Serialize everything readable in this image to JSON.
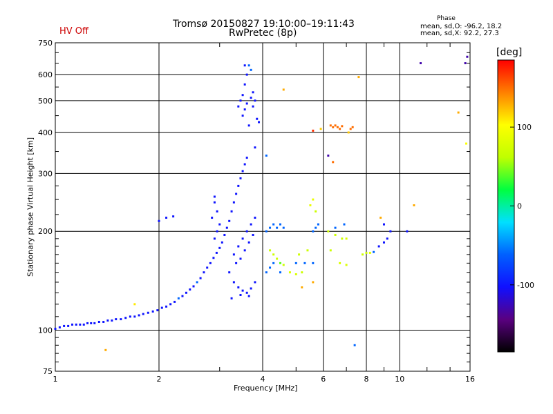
{
  "header": {
    "title_line1": "Tromsø 20150827 19:10:00–19:11:43",
    "title_line2": "RwPretec (8p)",
    "status": "HV Off"
  },
  "phase_box": {
    "label": "Phase",
    "line1": "mean, sd,O: -96.2, 18.2",
    "line2": "mean, sd,X:  92.2, 27.3"
  },
  "colorbar": {
    "unit": "[deg]",
    "ticks": [
      {
        "value": 100,
        "label": "100"
      },
      {
        "value": 0,
        "label": "0"
      },
      {
        "value": -100,
        "label": "-100"
      }
    ],
    "range": [
      -185,
      185
    ],
    "colors": [
      "#000000",
      "#5a0080",
      "#1010ff",
      "#0060ff",
      "#00e0ff",
      "#00ff40",
      "#c0ff00",
      "#ffff00",
      "#ff8000",
      "#ff0000"
    ]
  },
  "chart_data": {
    "type": "scatter",
    "xlabel": "Frequency [MHz]",
    "ylabel": "Stationary phase Virtual Height [km]",
    "xscale": "log",
    "yscale": "log",
    "xlim": [
      1,
      16
    ],
    "ylim": [
      75,
      750
    ],
    "grid": true,
    "xticks": [
      {
        "value": 1,
        "label": "1"
      },
      {
        "value": 2,
        "label": "2"
      },
      {
        "value": 4,
        "label": "4"
      },
      {
        "value": 6,
        "label": "6"
      },
      {
        "value": 8,
        "label": "8"
      },
      {
        "value": 10,
        "label": "10"
      },
      {
        "value": 16,
        "label": "16"
      }
    ],
    "yticks": [
      {
        "value": 75,
        "label": "75"
      },
      {
        "value": 100,
        "label": "100"
      },
      {
        "value": 200,
        "label": "200"
      },
      {
        "value": 300,
        "label": "300"
      },
      {
        "value": 400,
        "label": "400"
      },
      {
        "value": 500,
        "label": "500"
      },
      {
        "value": 600,
        "label": "600"
      },
      {
        "value": 750,
        "label": "750"
      }
    ],
    "points": [
      [
        1.0,
        101,
        -100
      ],
      [
        1.03,
        102,
        -100
      ],
      [
        1.06,
        103,
        -100
      ],
      [
        1.09,
        103,
        -100
      ],
      [
        1.12,
        104,
        -100
      ],
      [
        1.15,
        104,
        -100
      ],
      [
        1.18,
        104,
        -100
      ],
      [
        1.21,
        104,
        -100
      ],
      [
        1.24,
        105,
        -100
      ],
      [
        1.27,
        105,
        -100
      ],
      [
        1.3,
        105,
        -100
      ],
      [
        1.34,
        106,
        -100
      ],
      [
        1.38,
        106,
        -100
      ],
      [
        1.42,
        107,
        -100
      ],
      [
        1.46,
        107,
        -100
      ],
      [
        1.5,
        108,
        -100
      ],
      [
        1.55,
        108,
        -100
      ],
      [
        1.6,
        109,
        -100
      ],
      [
        1.65,
        110,
        -100
      ],
      [
        1.7,
        110,
        -100
      ],
      [
        1.75,
        111,
        -100
      ],
      [
        1.8,
        112,
        -100
      ],
      [
        1.86,
        113,
        -100
      ],
      [
        1.92,
        114,
        -100
      ],
      [
        1.98,
        115,
        -100
      ],
      [
        2.04,
        117,
        -100
      ],
      [
        2.1,
        118,
        -100
      ],
      [
        2.16,
        120,
        -100
      ],
      [
        2.22,
        122,
        -100
      ],
      [
        2.28,
        125,
        -60
      ],
      [
        2.34,
        127,
        -100
      ],
      [
        2.4,
        130,
        -100
      ],
      [
        2.46,
        133,
        -100
      ],
      [
        2.52,
        136,
        -100
      ],
      [
        2.58,
        140,
        -60
      ],
      [
        2.64,
        144,
        -100
      ],
      [
        2.7,
        150,
        -100
      ],
      [
        2.76,
        155,
        -100
      ],
      [
        2.82,
        160,
        -100
      ],
      [
        2.88,
        166,
        -100
      ],
      [
        2.94,
        172,
        -100
      ],
      [
        3.0,
        178,
        -100
      ],
      [
        2.9,
        190,
        -100
      ],
      [
        2.95,
        200,
        -100
      ],
      [
        3.0,
        210,
        -100
      ],
      [
        2.85,
        220,
        -100
      ],
      [
        2.95,
        230,
        -100
      ],
      [
        2.9,
        245,
        -100
      ],
      [
        2.9,
        255,
        -100
      ],
      [
        3.05,
        185,
        -100
      ],
      [
        3.1,
        195,
        -100
      ],
      [
        3.15,
        205,
        -100
      ],
      [
        3.2,
        215,
        -100
      ],
      [
        3.25,
        230,
        -100
      ],
      [
        3.3,
        245,
        -100
      ],
      [
        3.35,
        260,
        -100
      ],
      [
        3.4,
        275,
        -100
      ],
      [
        3.45,
        290,
        -100
      ],
      [
        3.5,
        305,
        -100
      ],
      [
        3.55,
        320,
        -100
      ],
      [
        3.6,
        335,
        -100
      ],
      [
        3.2,
        150,
        -100
      ],
      [
        3.3,
        140,
        -100
      ],
      [
        3.4,
        135,
        -100
      ],
      [
        3.5,
        132,
        -100
      ],
      [
        3.6,
        130,
        -100
      ],
      [
        3.7,
        134,
        -100
      ],
      [
        3.8,
        140,
        -100
      ],
      [
        3.3,
        170,
        -100
      ],
      [
        3.4,
        180,
        -100
      ],
      [
        3.5,
        190,
        -100
      ],
      [
        3.6,
        200,
        -100
      ],
      [
        3.7,
        210,
        -100
      ],
      [
        3.8,
        220,
        -100
      ],
      [
        3.35,
        160,
        -100
      ],
      [
        3.45,
        165,
        -100
      ],
      [
        3.55,
        175,
        -100
      ],
      [
        3.65,
        185,
        -100
      ],
      [
        3.75,
        195,
        -100
      ],
      [
        3.25,
        125,
        -100
      ],
      [
        3.45,
        128,
        -100
      ],
      [
        3.65,
        127,
        -100
      ],
      [
        3.5,
        450,
        -100
      ],
      [
        3.55,
        470,
        -100
      ],
      [
        3.6,
        490,
        -100
      ],
      [
        3.5,
        520,
        -100
      ],
      [
        3.55,
        560,
        -100
      ],
      [
        3.6,
        600,
        -100
      ],
      [
        3.55,
        640,
        -100
      ],
      [
        3.65,
        640,
        -60
      ],
      [
        3.7,
        620,
        -60
      ],
      [
        3.4,
        480,
        -100
      ],
      [
        3.45,
        500,
        -100
      ],
      [
        3.75,
        480,
        -100
      ],
      [
        3.8,
        500,
        -100
      ],
      [
        3.85,
        440,
        -100
      ],
      [
        3.9,
        430,
        -100
      ],
      [
        3.65,
        420,
        -100
      ],
      [
        3.7,
        510,
        -100
      ],
      [
        3.75,
        530,
        -100
      ],
      [
        4.1,
        200,
        -60
      ],
      [
        4.2,
        205,
        -60
      ],
      [
        4.3,
        210,
        -60
      ],
      [
        4.4,
        205,
        -60
      ],
      [
        4.5,
        210,
        -60
      ],
      [
        4.6,
        205,
        -60
      ],
      [
        4.2,
        175,
        70
      ],
      [
        4.3,
        170,
        70
      ],
      [
        4.4,
        165,
        70
      ],
      [
        4.5,
        160,
        40
      ],
      [
        4.6,
        158,
        70
      ],
      [
        4.1,
        150,
        -60
      ],
      [
        4.2,
        155,
        -60
      ],
      [
        4.3,
        160,
        -60
      ],
      [
        4.5,
        150,
        -60
      ],
      [
        4.8,
        150,
        80
      ],
      [
        5.0,
        148,
        80
      ],
      [
        5.2,
        150,
        70
      ],
      [
        5.0,
        160,
        -60
      ],
      [
        5.3,
        160,
        -60
      ],
      [
        5.6,
        160,
        -60
      ],
      [
        5.1,
        170,
        70
      ],
      [
        5.4,
        175,
        70
      ],
      [
        5.6,
        200,
        -60
      ],
      [
        5.7,
        205,
        -60
      ],
      [
        5.8,
        210,
        -60
      ],
      [
        5.5,
        240,
        90
      ],
      [
        5.6,
        250,
        90
      ],
      [
        5.7,
        230,
        70
      ],
      [
        5.2,
        135,
        130
      ],
      [
        5.6,
        140,
        130
      ],
      [
        6.3,
        420,
        150
      ],
      [
        6.4,
        415,
        150
      ],
      [
        6.5,
        420,
        150
      ],
      [
        6.6,
        415,
        150
      ],
      [
        6.7,
        410,
        150
      ],
      [
        6.8,
        418,
        150
      ],
      [
        7.2,
        410,
        150
      ],
      [
        7.3,
        415,
        150
      ],
      [
        5.6,
        405,
        170
      ],
      [
        5.9,
        410,
        120
      ],
      [
        6.2,
        340,
        -130
      ],
      [
        6.4,
        325,
        150
      ],
      [
        7.1,
        400,
        120
      ],
      [
        7.6,
        590,
        130
      ],
      [
        6.2,
        200,
        70
      ],
      [
        6.5,
        195,
        70
      ],
      [
        6.8,
        190,
        70
      ],
      [
        7.0,
        190,
        80
      ],
      [
        6.3,
        175,
        70
      ],
      [
        6.7,
        160,
        80
      ],
      [
        7.0,
        158,
        80
      ],
      [
        6.5,
        205,
        -60
      ],
      [
        6.9,
        210,
        -60
      ],
      [
        7.8,
        170,
        70
      ],
      [
        8.0,
        172,
        70
      ],
      [
        8.2,
        172,
        80
      ],
      [
        8.4,
        173,
        -60
      ],
      [
        8.7,
        180,
        -100
      ],
      [
        9.0,
        185,
        -100
      ],
      [
        9.2,
        190,
        -100
      ],
      [
        9.4,
        200,
        -100
      ],
      [
        9.0,
        210,
        -100
      ],
      [
        8.8,
        220,
        130
      ],
      [
        10.5,
        200,
        -100
      ],
      [
        11.0,
        240,
        130
      ],
      [
        11.5,
        650,
        -130
      ],
      [
        14.8,
        460,
        130
      ],
      [
        15.5,
        650,
        -130
      ],
      [
        15.7,
        680,
        -130
      ],
      [
        15.6,
        370,
        100
      ],
      [
        7.4,
        90,
        -60
      ],
      [
        1.7,
        120,
        110
      ],
      [
        1.4,
        87,
        130
      ],
      [
        2.0,
        215,
        -100
      ],
      [
        2.1,
        220,
        -100
      ],
      [
        2.2,
        222,
        -100
      ],
      [
        4.6,
        540,
        130
      ],
      [
        3.8,
        360,
        -100
      ],
      [
        4.1,
        340,
        -60
      ]
    ]
  }
}
